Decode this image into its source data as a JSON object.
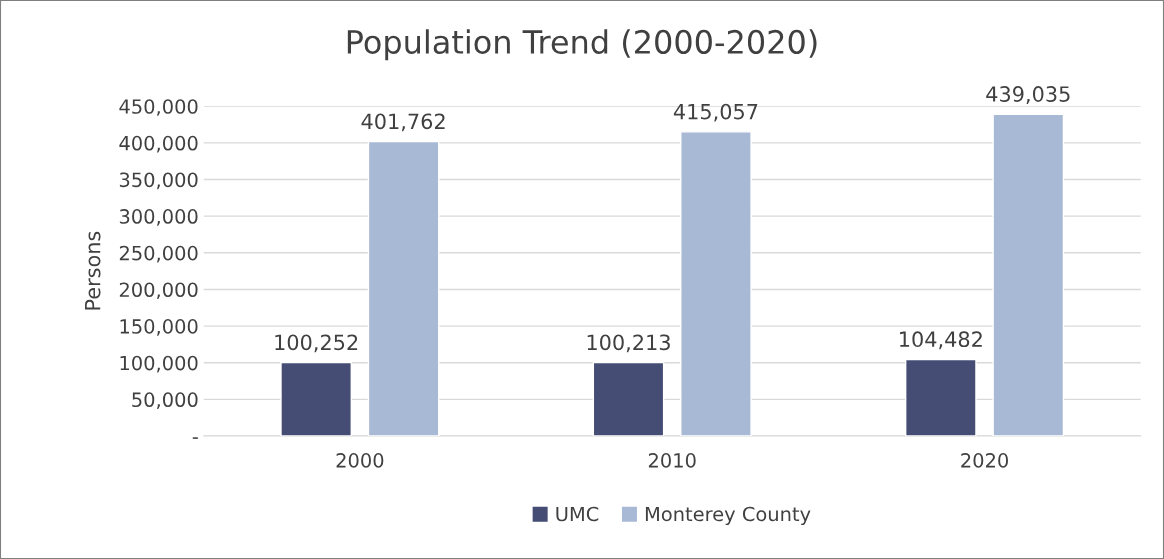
{
  "chart_data": {
    "type": "bar",
    "title": "Population Trend (2000-2020)",
    "ylabel": "Persons",
    "categories": [
      "2000",
      "2010",
      "2020"
    ],
    "series": [
      {
        "name": "UMC",
        "color": "#454d75",
        "values": [
          100252,
          100213,
          104482
        ],
        "value_labels": [
          "100,252",
          "100,213",
          "104,482"
        ]
      },
      {
        "name": "Monterey County",
        "color": "#a8b9d6",
        "values": [
          401762,
          415057,
          439035
        ],
        "value_labels": [
          "401,762",
          "415,057",
          "439,035"
        ]
      }
    ],
    "ylim": [
      0,
      450000
    ],
    "yticks": [
      {
        "value": 0,
        "label": "-"
      },
      {
        "value": 50000,
        "label": "50,000"
      },
      {
        "value": 100000,
        "label": "100,000"
      },
      {
        "value": 150000,
        "label": "150,000"
      },
      {
        "value": 200000,
        "label": "200,000"
      },
      {
        "value": 250000,
        "label": "250,000"
      },
      {
        "value": 300000,
        "label": "300,000"
      },
      {
        "value": 350000,
        "label": "350,000"
      },
      {
        "value": 400000,
        "label": "400,000"
      },
      {
        "value": 450000,
        "label": "450,000"
      }
    ],
    "grid": "y",
    "legend": "bottom"
  }
}
